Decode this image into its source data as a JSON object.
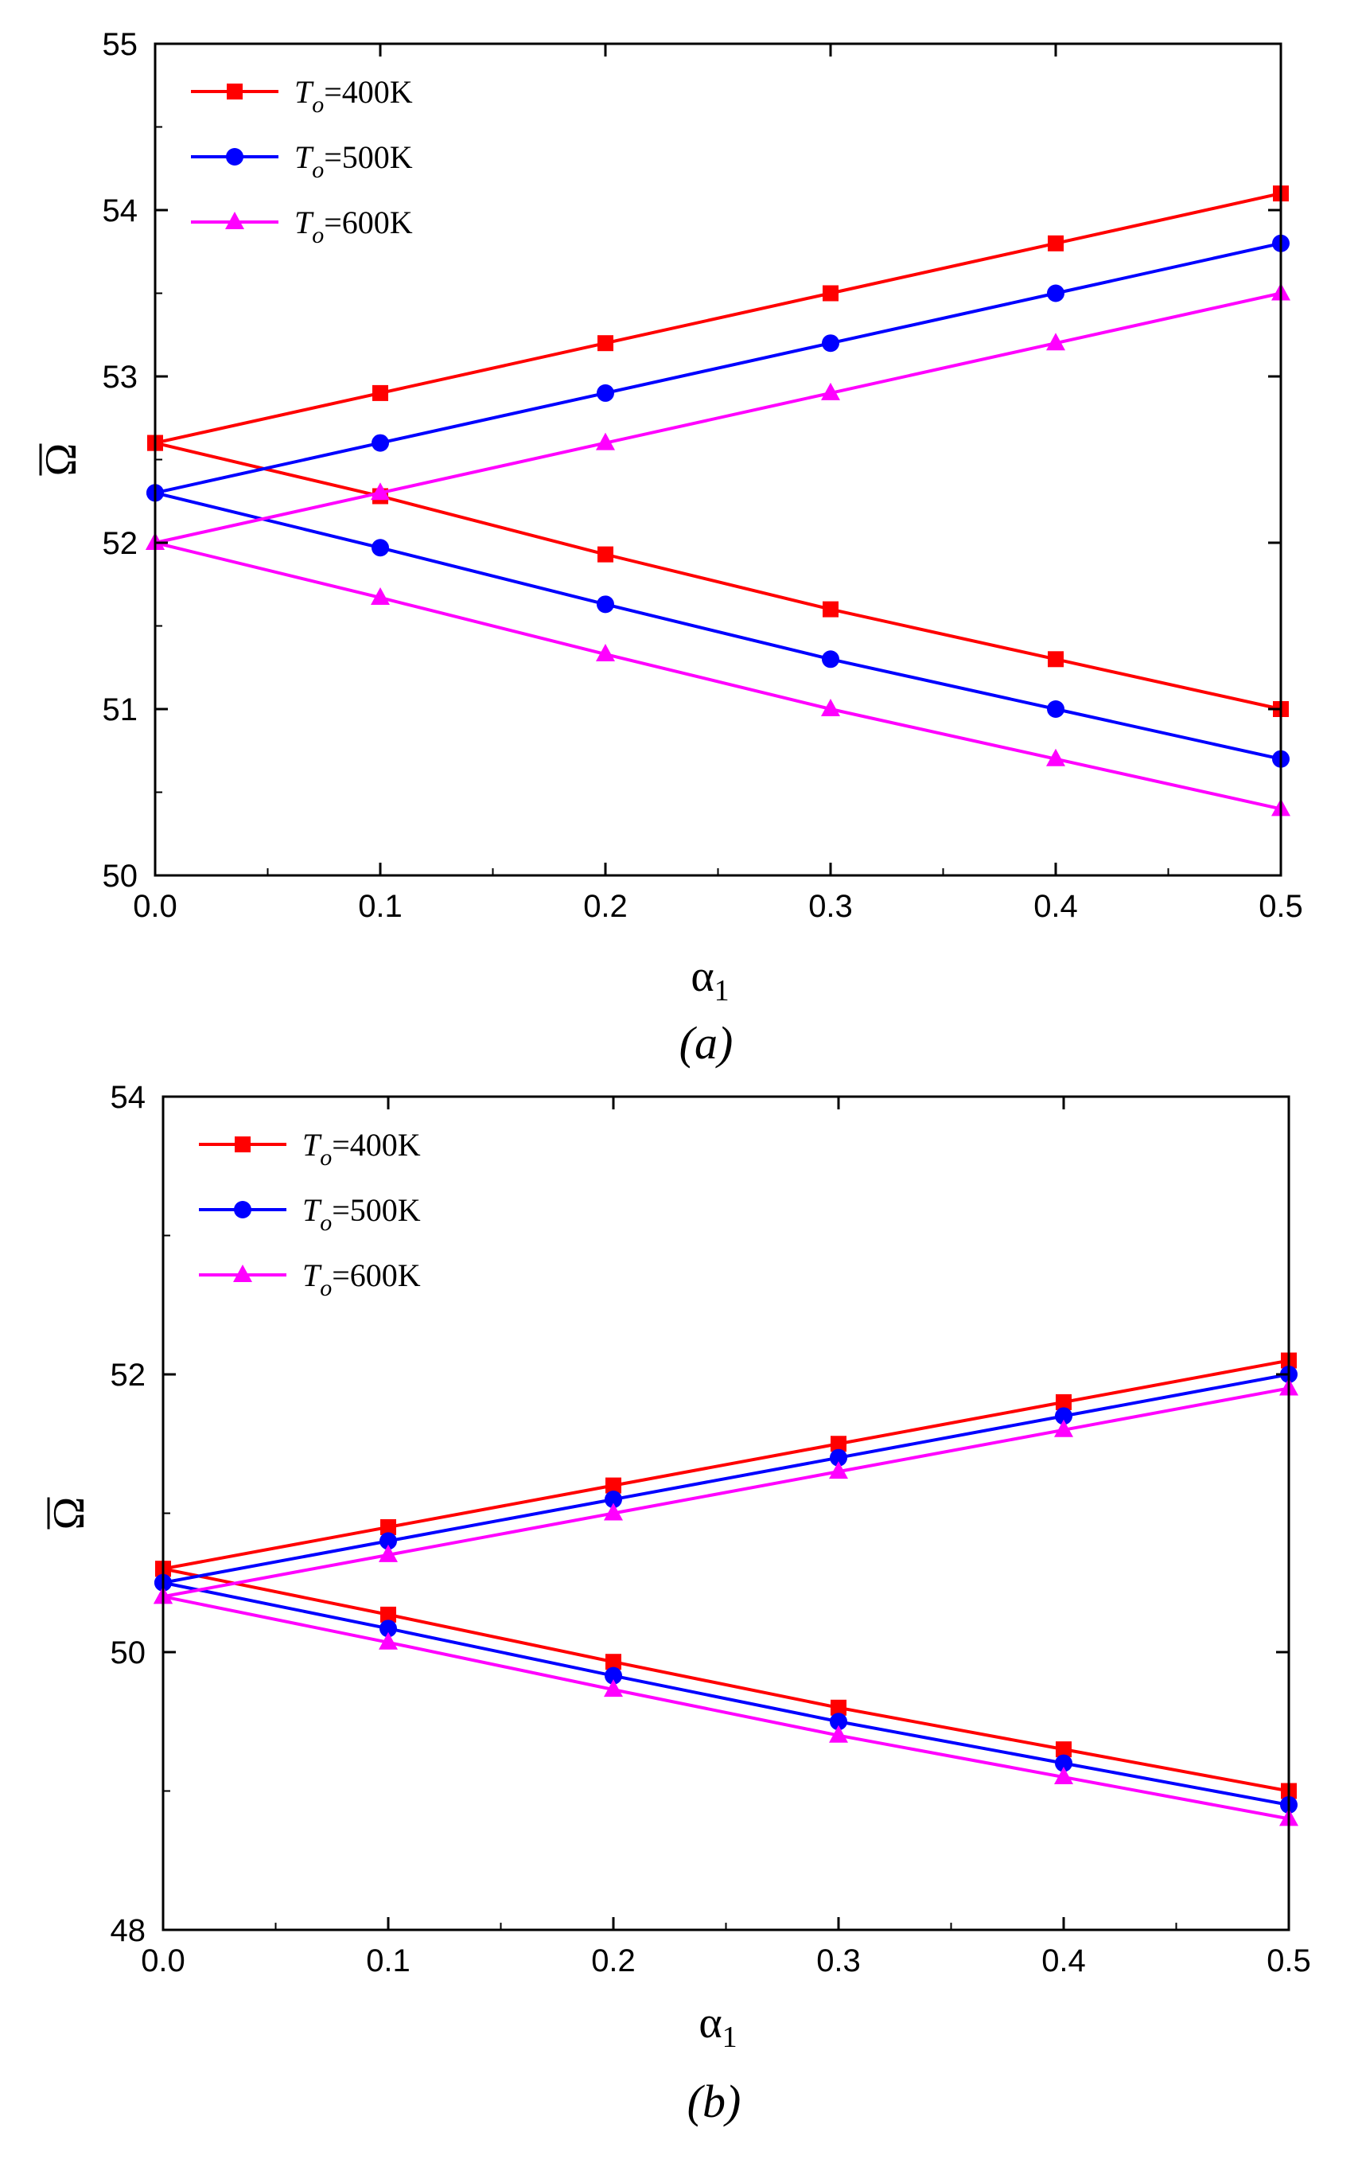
{
  "chart_data": [
    {
      "type": "line",
      "caption": "(a)",
      "xlabel": "α",
      "xlabel_subscript": "1",
      "ylabel": "Ω",
      "xlim": [
        0,
        0.5
      ],
      "ylim": [
        50,
        55
      ],
      "xticks": [
        "0.0",
        "0.1",
        "0.2",
        "0.3",
        "0.4",
        "0.5"
      ],
      "yticks": [
        "50",
        "51",
        "52",
        "53",
        "54",
        "55"
      ],
      "legend_position": "top-left",
      "x": [
        0,
        0.1,
        0.2,
        0.3,
        0.4,
        0.5
      ],
      "series": [
        {
          "name": "To=400K",
          "legend_symbol": "T",
          "legend_sub": "o",
          "legend_value": "=400K",
          "color": "#ff0000",
          "marker": "square",
          "upper": [
            52.6,
            52.9,
            53.2,
            53.5,
            53.8,
            54.1
          ],
          "lower": [
            52.6,
            52.28,
            51.93,
            51.6,
            51.3,
            51.0
          ]
        },
        {
          "name": "To=500K",
          "legend_symbol": "T",
          "legend_sub": "o",
          "legend_value": "=500K",
          "color": "#0000ff",
          "marker": "circle",
          "upper": [
            52.3,
            52.6,
            52.9,
            53.2,
            53.5,
            53.8
          ],
          "lower": [
            52.3,
            51.97,
            51.63,
            51.3,
            51.0,
            50.7
          ]
        },
        {
          "name": "To=600K",
          "legend_symbol": "T",
          "legend_sub": "o",
          "legend_value": "=600K",
          "color": "#ff00ff",
          "marker": "triangle",
          "upper": [
            52.0,
            52.3,
            52.6,
            52.9,
            53.2,
            53.5
          ],
          "lower": [
            52.0,
            51.67,
            51.33,
            51.0,
            50.7,
            50.4
          ]
        }
      ]
    },
    {
      "type": "line",
      "caption": "(b)",
      "xlabel": "α",
      "xlabel_subscript": "1",
      "ylabel": "Ω",
      "xlim": [
        0,
        0.5
      ],
      "ylim": [
        48,
        54
      ],
      "xticks": [
        "0.0",
        "0.1",
        "0.2",
        "0.3",
        "0.4",
        "0.5"
      ],
      "yticks": [
        "48",
        "50",
        "52",
        "54"
      ],
      "legend_position": "top-left",
      "x": [
        0,
        0.1,
        0.2,
        0.3,
        0.4,
        0.5
      ],
      "series": [
        {
          "name": "To=400K",
          "legend_symbol": "T",
          "legend_sub": "o",
          "legend_value": "=400K",
          "color": "#ff0000",
          "marker": "square",
          "upper": [
            50.6,
            50.9,
            51.2,
            51.5,
            51.8,
            52.1
          ],
          "lower": [
            50.6,
            50.27,
            49.93,
            49.6,
            49.3,
            49.0
          ]
        },
        {
          "name": "To=500K",
          "legend_symbol": "T",
          "legend_sub": "o",
          "legend_value": "=500K",
          "color": "#0000ff",
          "marker": "circle",
          "upper": [
            50.5,
            50.8,
            51.1,
            51.4,
            51.7,
            52.0
          ],
          "lower": [
            50.5,
            50.17,
            49.83,
            49.5,
            49.2,
            48.9
          ]
        },
        {
          "name": "To=600K",
          "legend_symbol": "T",
          "legend_sub": "o",
          "legend_value": "=600K",
          "color": "#ff00ff",
          "marker": "triangle",
          "upper": [
            50.4,
            50.7,
            51.0,
            51.3,
            51.6,
            51.9
          ],
          "lower": [
            50.4,
            50.07,
            49.73,
            49.4,
            49.1,
            48.8
          ]
        }
      ]
    }
  ]
}
